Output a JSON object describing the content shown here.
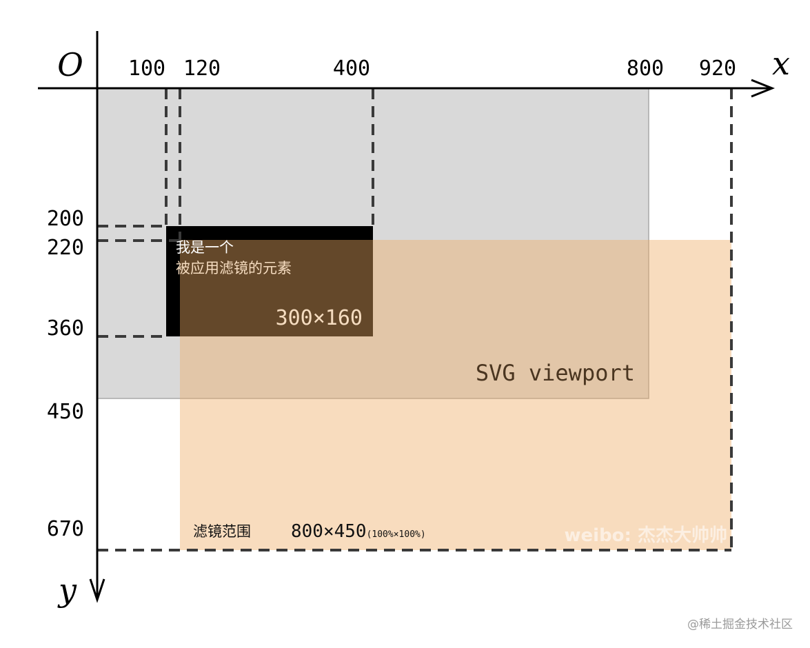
{
  "axes": {
    "origin": "O",
    "x_label": "x",
    "y_label": "y",
    "x_ticks": [
      "100",
      "120",
      "400",
      "800",
      "920"
    ],
    "y_ticks": [
      "200",
      "220",
      "360",
      "450",
      "670"
    ]
  },
  "element": {
    "line1": "我是一个",
    "line2": "被应用滤镜的元素",
    "size": "300×160"
  },
  "viewport": {
    "label": "SVG viewport"
  },
  "filter_region": {
    "label": "滤镜范围",
    "size": "800×450",
    "note": "(100%×100%)"
  },
  "watermark": "weibo: 杰杰大帅帅",
  "credit": "@稀土掘金技术社区"
}
